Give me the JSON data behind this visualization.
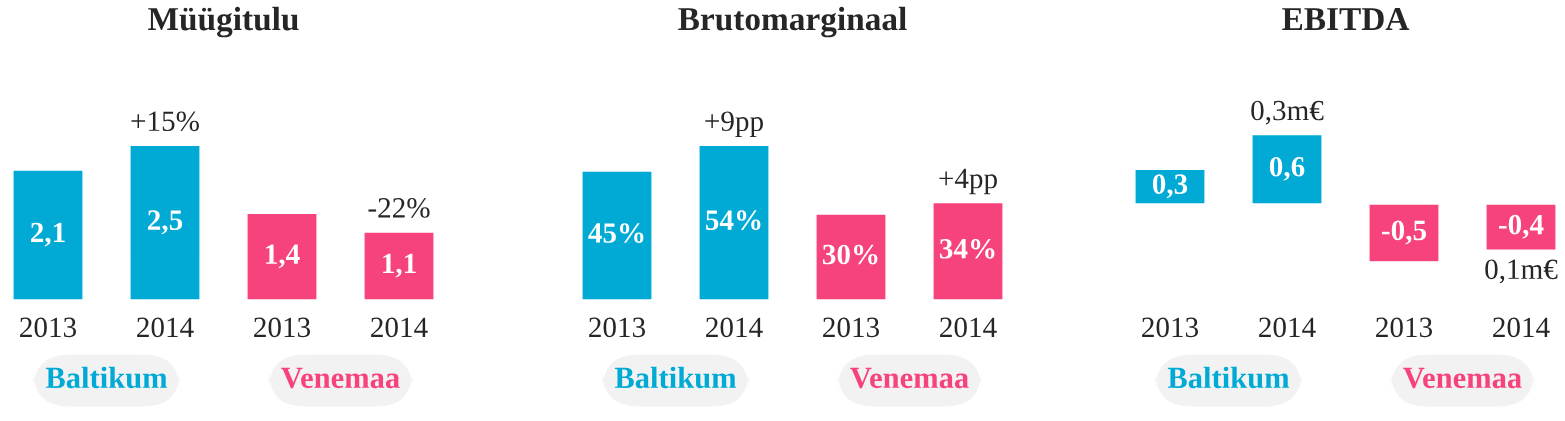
{
  "chart_data": [
    {
      "type": "bar",
      "title": "Müügitulu",
      "categories": [
        "2013",
        "2014",
        "2013",
        "2014"
      ],
      "values": [
        2.1,
        2.5,
        1.4,
        1.1
      ],
      "colors": [
        "#00aad4",
        "#00aad4",
        "#f7437b",
        "#f7437b"
      ],
      "value_labels": [
        "2,1",
        "2,5",
        "1,4",
        "1,1"
      ],
      "annotations": [
        "Baltikum",
        "Venemaa",
        "+15%",
        "-22%"
      ]
    },
    {
      "type": "bar",
      "title": "Brutomarginaal",
      "categories": [
        "2013",
        "2014",
        "2013",
        "2014"
      ],
      "values": [
        45,
        54,
        30,
        34
      ],
      "colors": [
        "#00aad4",
        "#00aad4",
        "#f7437b",
        "#f7437b"
      ],
      "value_labels": [
        "45%",
        "54%",
        "30%",
        "34%"
      ],
      "annotations": [
        "Baltikum",
        "Venemaa",
        "+9pp",
        "+4pp"
      ]
    },
    {
      "type": "bar",
      "title": "EBITDA",
      "categories": [
        "2013",
        "2014",
        "2013",
        "2014"
      ],
      "values": [
        0.3,
        0.6,
        -0.5,
        -0.4
      ],
      "colors": [
        "#00aad4",
        "#00aad4",
        "#f7437b",
        "#f7437b"
      ],
      "value_labels": [
        "0,3",
        "0,6",
        "-0,5",
        "-0,4"
      ],
      "annotations": [
        "Baltikum",
        "Venemaa",
        "0,3m€",
        "0,1m€"
      ]
    }
  ]
}
